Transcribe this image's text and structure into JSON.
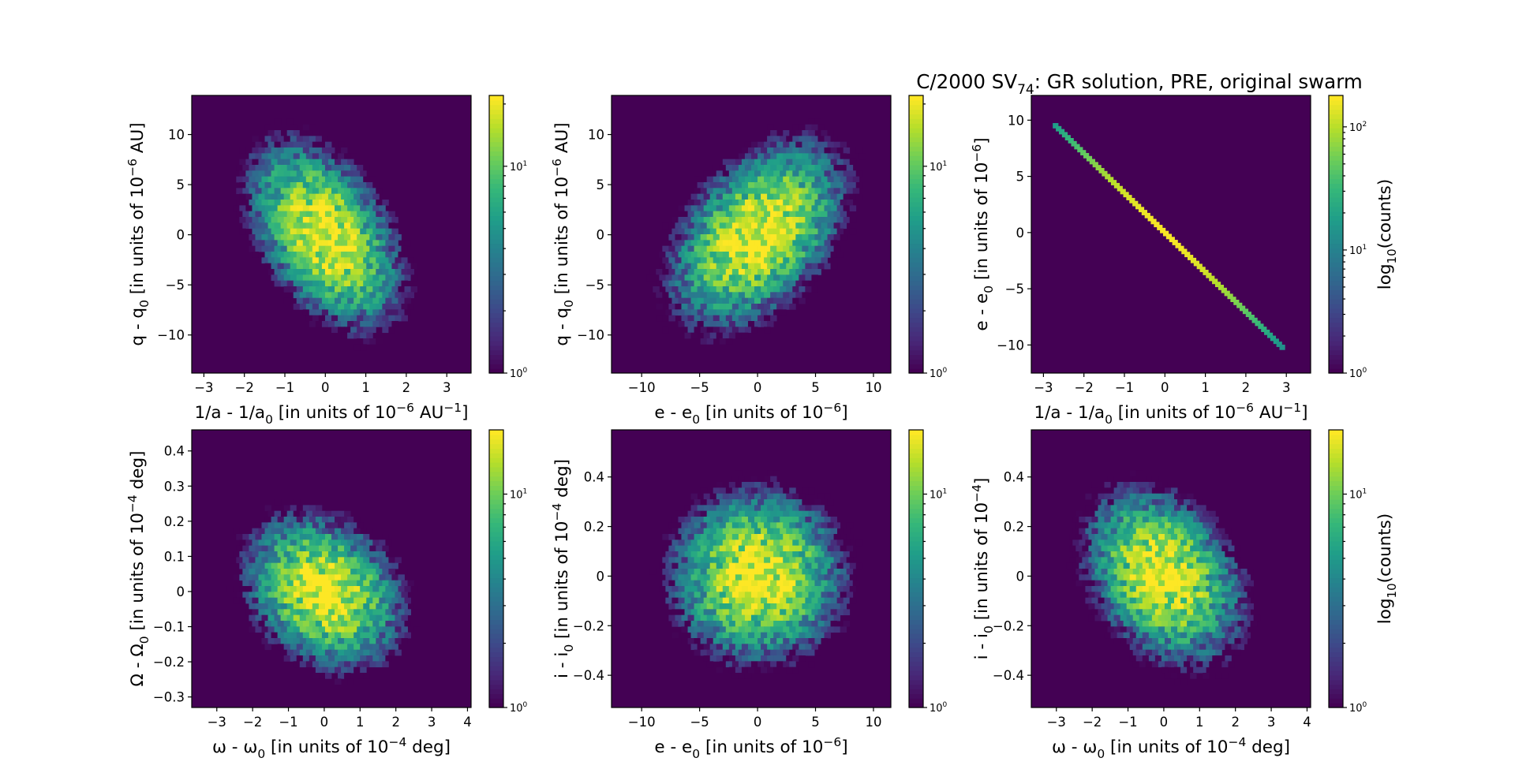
{
  "figure": {
    "title": "C/2000 SV",
    "title_sub": "74",
    "title_rest": ": GR solution, PRE, original swarm"
  },
  "colormap": {
    "name": "viridis",
    "stops": [
      "#440154",
      "#482878",
      "#3e4989",
      "#31688e",
      "#26828e",
      "#1f9e89",
      "#35b779",
      "#6ece58",
      "#b5de2b",
      "#fde725"
    ]
  },
  "chart_data": [
    {
      "type": "hexbin",
      "xlabel_parts": [
        [
          "1/a - 1/a",
          ""
        ],
        [
          "0",
          "sub"
        ],
        [
          " [in units of 10",
          ""
        ],
        [
          "−6",
          "sup"
        ],
        [
          " AU",
          ""
        ],
        [
          "−1",
          "sup"
        ],
        [
          "]",
          ""
        ]
      ],
      "ylabel_parts": [
        [
          "q - q",
          ""
        ],
        [
          "0",
          "sub"
        ],
        [
          " [in units of 10",
          ""
        ],
        [
          "−6",
          "sup"
        ],
        [
          " AU]",
          ""
        ]
      ],
      "xlim": [
        -3.3,
        3.6
      ],
      "ylim": [
        -13.8,
        13.9
      ],
      "xticks": [
        -3,
        -2,
        -1,
        0,
        1,
        2,
        3
      ],
      "yticks": [
        -10,
        -5,
        0,
        5,
        10
      ],
      "spread": [
        0.85,
        4.2
      ],
      "correlation": -0.45,
      "peak_log": 1.35,
      "colorbar": {
        "vmax": 22,
        "ticks": [
          "10^0",
          "10^1"
        ],
        "label": ""
      }
    },
    {
      "type": "hexbin",
      "xlabel_parts": [
        [
          "e - e",
          ""
        ],
        [
          "0",
          "sub"
        ],
        [
          " [in units of 10",
          ""
        ],
        [
          "−6",
          "sup"
        ],
        [
          "]",
          ""
        ]
      ],
      "ylabel_parts": [
        [
          "q - q",
          ""
        ],
        [
          "0",
          "sub"
        ],
        [
          " [in units of 10",
          ""
        ],
        [
          "−6",
          "sup"
        ],
        [
          " AU]",
          ""
        ]
      ],
      "xlim": [
        -12.6,
        11.5
      ],
      "ylim": [
        -13.8,
        13.9
      ],
      "xticks": [
        -10,
        -5,
        0,
        5,
        10
      ],
      "yticks": [
        -10,
        -5,
        0,
        5,
        10
      ],
      "spread": [
        3.4,
        4.2
      ],
      "correlation": 0.45,
      "peak_log": 1.35,
      "colorbar": {
        "vmax": 22,
        "ticks": [
          "10^0",
          "10^1"
        ],
        "label": ""
      }
    },
    {
      "type": "hexbin-line",
      "xlabel_parts": [
        [
          "1/a - 1/a",
          ""
        ],
        [
          "0",
          "sub"
        ],
        [
          " [in units of 10",
          ""
        ],
        [
          "−6",
          "sup"
        ],
        [
          " AU",
          ""
        ],
        [
          "−1",
          "sup"
        ],
        [
          "]",
          ""
        ]
      ],
      "ylabel_parts": [
        [
          "e - e",
          ""
        ],
        [
          "0",
          "sub"
        ],
        [
          " [in units of 10",
          ""
        ],
        [
          "−6",
          "sup"
        ],
        [
          "]",
          ""
        ]
      ],
      "xlim": [
        -3.3,
        3.6
      ],
      "ylim": [
        -12.5,
        12.2
      ],
      "xticks": [
        -3,
        -2,
        -1,
        0,
        1,
        2,
        3
      ],
      "yticks": [
        -10,
        -5,
        0,
        5,
        10
      ],
      "line": {
        "x_start": -2.7,
        "x_end": 2.9,
        "slope": -3.52
      },
      "colorbar": {
        "vmax": 180,
        "ticks": [
          "10^0",
          "10^1",
          "10^2"
        ],
        "label": "log10(counts)"
      }
    },
    {
      "type": "hexbin",
      "xlabel_parts": [
        [
          "ω - ω",
          ""
        ],
        [
          "0",
          "sub"
        ],
        [
          " [in units of 10",
          ""
        ],
        [
          "−4",
          "sup"
        ],
        [
          " deg]",
          ""
        ]
      ],
      "ylabel_parts": [
        [
          "Ω - Ω",
          ""
        ],
        [
          "0",
          "sub"
        ],
        [
          " [in units of 10",
          ""
        ],
        [
          "−4",
          "sup"
        ],
        [
          " deg]",
          ""
        ]
      ],
      "xlim": [
        -3.7,
        4.1
      ],
      "ylim": [
        -0.33,
        0.46
      ],
      "xticks": [
        -3,
        -2,
        -1,
        0,
        1,
        2,
        3,
        4
      ],
      "yticks": [
        -0.3,
        -0.2,
        -0.1,
        0.0,
        0.1,
        0.2,
        0.3,
        0.4
      ],
      "spread": [
        1.0,
        0.1
      ],
      "correlation": -0.25,
      "peak_log": 1.3,
      "colorbar": {
        "vmax": 20,
        "ticks": [
          "10^0",
          "10^1"
        ],
        "label": ""
      }
    },
    {
      "type": "hexbin",
      "xlabel_parts": [
        [
          "e - e",
          ""
        ],
        [
          "0",
          "sub"
        ],
        [
          " [in units of 10",
          ""
        ],
        [
          "−6",
          "sup"
        ],
        [
          "]",
          ""
        ]
      ],
      "ylabel_parts": [
        [
          "i - i",
          ""
        ],
        [
          "0",
          "sub"
        ],
        [
          " [in units of 10",
          ""
        ],
        [
          "−4",
          "sup"
        ],
        [
          " deg]",
          ""
        ]
      ],
      "xlim": [
        -12.6,
        11.5
      ],
      "ylim": [
        -0.53,
        0.59
      ],
      "xticks": [
        -10,
        -5,
        0,
        5,
        10
      ],
      "yticks": [
        -0.4,
        -0.2,
        0.0,
        0.2,
        0.4
      ],
      "spread": [
        3.4,
        0.16
      ],
      "correlation": 0.0,
      "peak_log": 1.3,
      "colorbar": {
        "vmax": 20,
        "ticks": [
          "10^0",
          "10^1"
        ],
        "label": ""
      }
    },
    {
      "type": "hexbin",
      "xlabel_parts": [
        [
          "ω - ω",
          ""
        ],
        [
          "0",
          "sub"
        ],
        [
          " [in units of 10",
          ""
        ],
        [
          "−4",
          "sup"
        ],
        [
          " deg]",
          ""
        ]
      ],
      "ylabel_parts": [
        [
          "i - i",
          ""
        ],
        [
          "0",
          "sub"
        ],
        [
          " [in units of 10",
          ""
        ],
        [
          "−4",
          "sup"
        ],
        [
          "]",
          ""
        ]
      ],
      "xlim": [
        -3.7,
        4.1
      ],
      "ylim": [
        -0.53,
        0.59
      ],
      "xticks": [
        -3,
        -2,
        -1,
        0,
        1,
        2,
        3,
        4
      ],
      "yticks": [
        -0.4,
        -0.2,
        0.0,
        0.2,
        0.4
      ],
      "spread": [
        1.0,
        0.16
      ],
      "correlation": -0.3,
      "peak_log": 1.3,
      "colorbar": {
        "vmax": 20,
        "ticks": [
          "10^0",
          "10^1"
        ],
        "label": "log10(counts)"
      }
    }
  ]
}
